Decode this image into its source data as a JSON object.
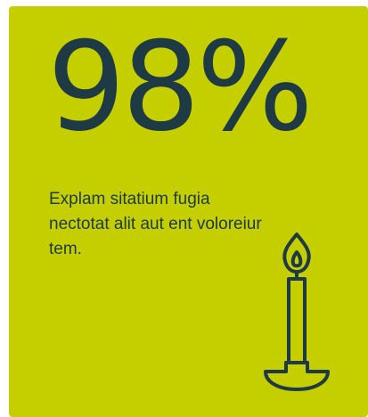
{
  "stat": {
    "value": "98%"
  },
  "description": {
    "text": "Explam sitatium fugia nectotat alit aut ent voloreiur tem."
  },
  "icon": {
    "name": "candle-icon"
  },
  "colors": {
    "background": "#c5cf00",
    "text": "#1e3a45"
  }
}
